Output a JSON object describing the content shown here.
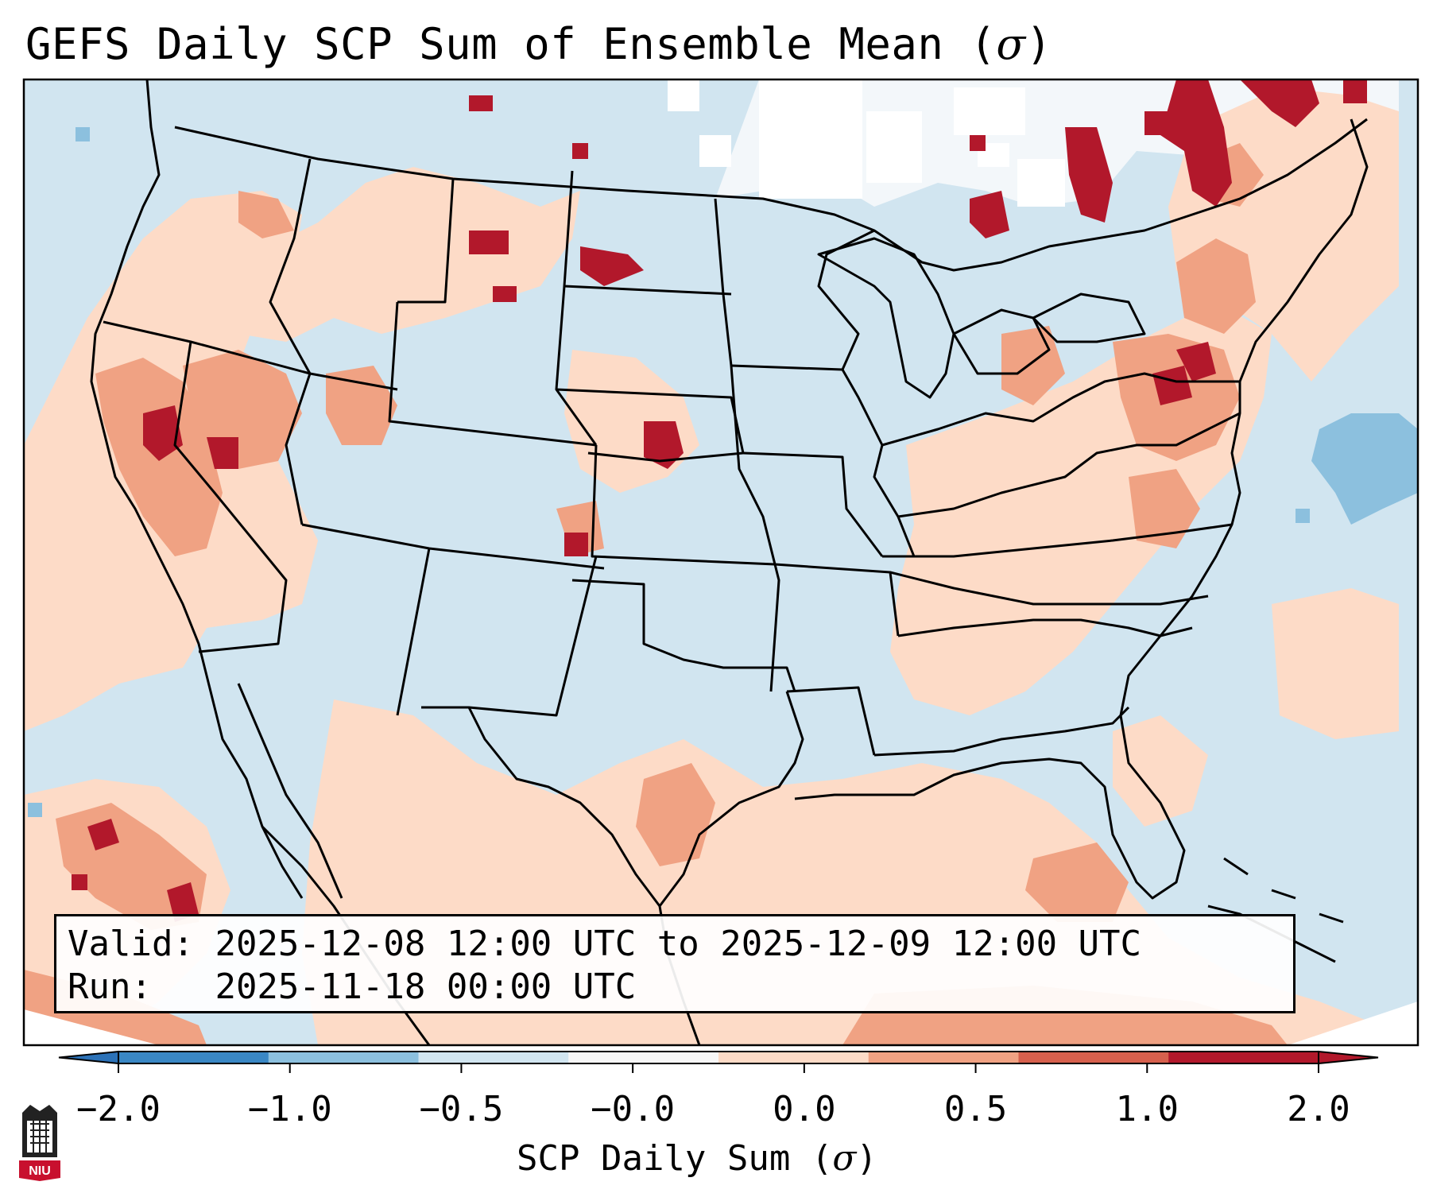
{
  "title": {
    "text": "GEFS Daily SCP Sum of Ensemble Mean (",
    "symbol": "σ",
    "close": ")"
  },
  "info": {
    "valid_label": "Valid:",
    "valid_value": "2025-12-08 12:00 UTC to 2025-12-09 12:00 UTC",
    "run_label": "Run:",
    "run_value": "2025-11-18 00:00 UTC"
  },
  "colorbar": {
    "label_text": "SCP Daily Sum (",
    "label_symbol": "σ",
    "label_close": ")",
    "ticks": [
      "−2.0",
      "−1.0",
      "−0.5",
      "−0.0",
      "0.0",
      "0.5",
      "1.0",
      "2.0"
    ],
    "colors": [
      "#3a87c4",
      "#8cc0de",
      "#d1e5f0",
      "#f7f7f7",
      "#fddbc7",
      "#f0a283",
      "#d6604d",
      "#b2182b"
    ],
    "under_color": "#2c72b8",
    "over_color": "#b2182b"
  },
  "map": {
    "background_color": "#d1e5f0",
    "region_features": [
      {
        "name": "canada-quebec-anomaly",
        "category": 4
      },
      {
        "name": "ontario-high-anomaly",
        "category": 7
      },
      {
        "name": "quebec-high-anomaly",
        "category": 7
      },
      {
        "name": "california-anomaly",
        "category": 6
      },
      {
        "name": "nevada-anomaly",
        "category": 6
      },
      {
        "name": "nebraska-hotspot",
        "category": 7
      },
      {
        "name": "north-dakota-hotspot",
        "category": 7
      },
      {
        "name": "gulf-of-mexico-anomaly",
        "category": 4
      },
      {
        "name": "northeast-anomaly",
        "category": 6
      },
      {
        "name": "pacific-southwest-anomaly",
        "category": 6
      },
      {
        "name": "atlantic-negative-anomaly",
        "category": 1
      }
    ]
  },
  "logo": {
    "text": "NIU"
  }
}
